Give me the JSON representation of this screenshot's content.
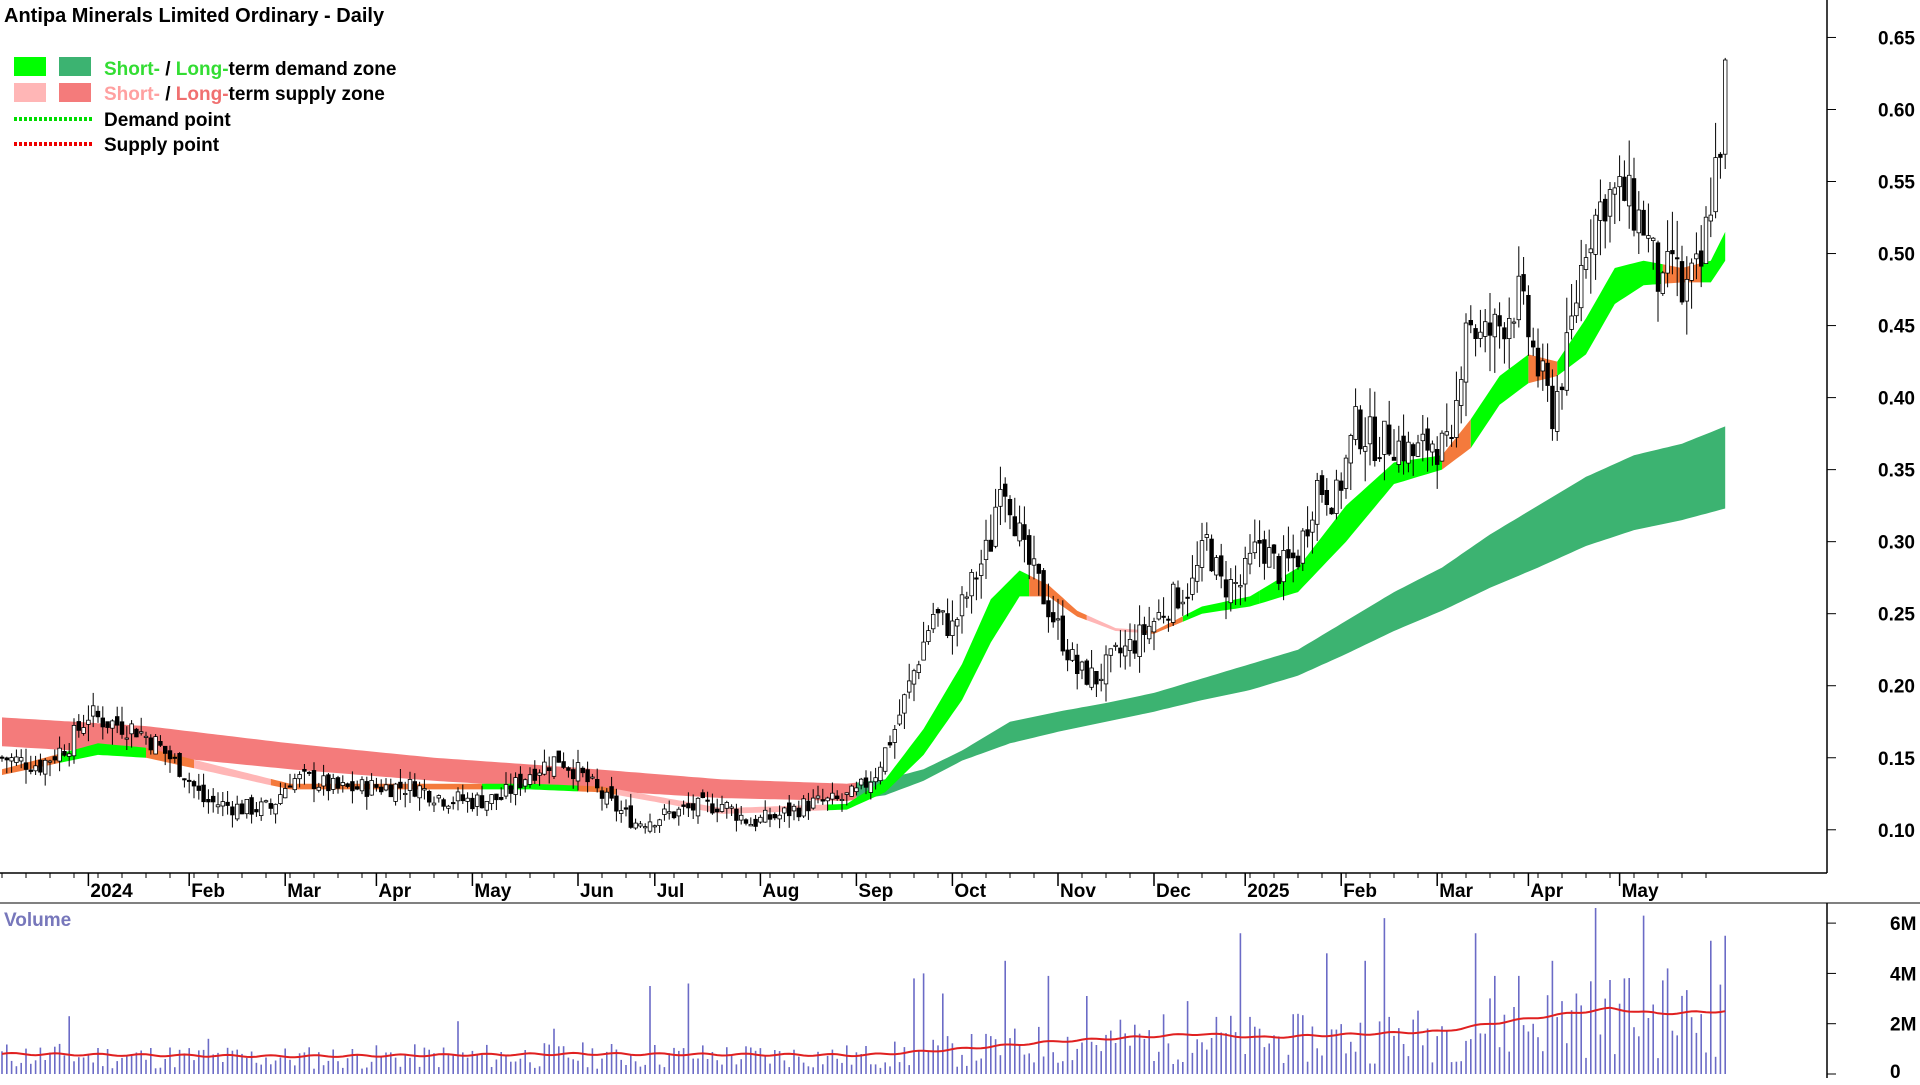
{
  "title": "Antipa Minerals Limited Ordinary - Daily",
  "legend": {
    "demand_zone": {
      "short": "Short-",
      "sep": " / ",
      "long": "Long-",
      "rest": "term demand zone"
    },
    "supply_zone": {
      "short": "Short-",
      "sep": " / ",
      "long": "Long-",
      "rest": "term supply zone"
    },
    "demand_point": "Demand point",
    "supply_point": "Supply point"
  },
  "colors": {
    "short_demand": "#00ff00",
    "long_demand": "#3cb371",
    "short_supply": "#ffb6b6",
    "long_supply": "#f47b7b",
    "crossover": "#f47a3c",
    "demand_point": "#00dd00",
    "supply_point": "#ee0000",
    "volume_bar": "#6b6bc6",
    "volume_avg": "#e02020",
    "legend_green_text": "#33dd33",
    "legend_pink_text": "#ffa0a0",
    "legend_salmon_text": "#f07070"
  },
  "chart_data": [
    {
      "type": "candlestick",
      "title": "Antipa Minerals Limited Ordinary - Daily",
      "y_ticks": [
        "0.65",
        "0.60",
        "0.55",
        "0.50",
        "0.45",
        "0.40",
        "0.35",
        "0.30",
        "0.25",
        "0.20",
        "0.15",
        "0.10"
      ],
      "y_tick_values": [
        0.65,
        0.6,
        0.55,
        0.5,
        0.45,
        0.4,
        0.35,
        0.3,
        0.25,
        0.2,
        0.15,
        0.1
      ],
      "ylim": [
        0.07,
        0.676
      ],
      "x_ticks": [
        "2024",
        "Feb",
        "Mar",
        "Apr",
        "May",
        "Jun",
        "Jul",
        "Aug",
        "Sep",
        "Oct",
        "Nov",
        "Dec",
        "2025",
        "Feb",
        "Mar",
        "Apr",
        "May"
      ],
      "x_tick_indices": [
        18,
        39,
        59,
        78,
        98,
        120,
        136,
        158,
        178,
        198,
        220,
        240,
        259,
        279,
        299,
        318,
        337
      ],
      "close_anchors": [
        [
          0,
          0.15
        ],
        [
          8,
          0.145
        ],
        [
          14,
          0.16
        ],
        [
          18,
          0.18
        ],
        [
          22,
          0.175
        ],
        [
          28,
          0.17
        ],
        [
          32,
          0.16
        ],
        [
          38,
          0.14
        ],
        [
          42,
          0.12
        ],
        [
          50,
          0.115
        ],
        [
          56,
          0.115
        ],
        [
          60,
          0.135
        ],
        [
          64,
          0.135
        ],
        [
          70,
          0.128
        ],
        [
          78,
          0.13
        ],
        [
          86,
          0.13
        ],
        [
          92,
          0.122
        ],
        [
          98,
          0.12
        ],
        [
          104,
          0.122
        ],
        [
          110,
          0.14
        ],
        [
          116,
          0.15
        ],
        [
          120,
          0.14
        ],
        [
          126,
          0.12
        ],
        [
          132,
          0.105
        ],
        [
          138,
          0.11
        ],
        [
          144,
          0.115
        ],
        [
          150,
          0.118
        ],
        [
          156,
          0.105
        ],
        [
          162,
          0.11
        ],
        [
          168,
          0.118
        ],
        [
          174,
          0.12
        ],
        [
          178,
          0.125
        ],
        [
          182,
          0.14
        ],
        [
          186,
          0.17
        ],
        [
          190,
          0.21
        ],
        [
          194,
          0.25
        ],
        [
          198,
          0.24
        ],
        [
          202,
          0.27
        ],
        [
          206,
          0.3
        ],
        [
          208,
          0.35
        ],
        [
          210,
          0.33
        ],
        [
          213,
          0.29
        ],
        [
          216,
          0.27
        ],
        [
          220,
          0.24
        ],
        [
          224,
          0.21
        ],
        [
          228,
          0.205
        ],
        [
          232,
          0.22
        ],
        [
          236,
          0.23
        ],
        [
          240,
          0.245
        ],
        [
          244,
          0.26
        ],
        [
          248,
          0.27
        ],
        [
          251,
          0.3
        ],
        [
          254,
          0.27
        ],
        [
          258,
          0.27
        ],
        [
          262,
          0.3
        ],
        [
          266,
          0.28
        ],
        [
          270,
          0.29
        ],
        [
          274,
          0.34
        ],
        [
          278,
          0.33
        ],
        [
          282,
          0.38
        ],
        [
          286,
          0.37
        ],
        [
          290,
          0.37
        ],
        [
          294,
          0.36
        ],
        [
          298,
          0.37
        ],
        [
          302,
          0.36
        ],
        [
          305,
          0.46
        ],
        [
          308,
          0.44
        ],
        [
          312,
          0.45
        ],
        [
          316,
          0.47
        ],
        [
          320,
          0.42
        ],
        [
          323,
          0.39
        ],
        [
          326,
          0.43
        ],
        [
          330,
          0.51
        ],
        [
          334,
          0.54
        ],
        [
          338,
          0.54
        ],
        [
          342,
          0.52
        ],
        [
          346,
          0.47
        ],
        [
          348,
          0.5
        ],
        [
          350,
          0.47
        ],
        [
          352,
          0.48
        ],
        [
          354,
          0.49
        ],
        [
          356,
          0.54
        ],
        [
          358,
          0.58
        ],
        [
          359,
          0.62
        ]
      ],
      "short_demand_zone_top": [
        [
          0,
          0.142
        ],
        [
          20,
          0.16
        ],
        [
          30,
          0.157
        ],
        [
          60,
          0.132
        ],
        [
          110,
          0.132
        ],
        [
          125,
          0.13
        ],
        [
          150,
          0.115
        ],
        [
          176,
          0.118
        ],
        [
          184,
          0.135
        ],
        [
          192,
          0.17
        ],
        [
          200,
          0.215
        ],
        [
          206,
          0.26
        ],
        [
          212,
          0.28
        ],
        [
          218,
          0.27
        ],
        [
          224,
          0.252
        ],
        [
          232,
          0.24
        ],
        [
          240,
          0.238
        ],
        [
          250,
          0.255
        ],
        [
          260,
          0.262
        ],
        [
          270,
          0.282
        ],
        [
          280,
          0.325
        ],
        [
          290,
          0.355
        ],
        [
          300,
          0.36
        ],
        [
          306,
          0.385
        ],
        [
          312,
          0.415
        ],
        [
          318,
          0.43
        ],
        [
          324,
          0.425
        ],
        [
          330,
          0.455
        ],
        [
          336,
          0.49
        ],
        [
          342,
          0.495
        ],
        [
          350,
          0.49
        ],
        [
          356,
          0.495
        ],
        [
          359,
          0.515
        ]
      ],
      "short_demand_zone_bottom": [
        [
          0,
          0.138
        ],
        [
          20,
          0.152
        ],
        [
          30,
          0.15
        ],
        [
          60,
          0.128
        ],
        [
          110,
          0.128
        ],
        [
          125,
          0.126
        ],
        [
          150,
          0.111
        ],
        [
          176,
          0.114
        ],
        [
          184,
          0.126
        ],
        [
          192,
          0.152
        ],
        [
          200,
          0.19
        ],
        [
          206,
          0.23
        ],
        [
          212,
          0.262
        ],
        [
          218,
          0.262
        ],
        [
          224,
          0.248
        ],
        [
          232,
          0.238
        ],
        [
          240,
          0.236
        ],
        [
          250,
          0.25
        ],
        [
          260,
          0.255
        ],
        [
          270,
          0.265
        ],
        [
          280,
          0.3
        ],
        [
          290,
          0.34
        ],
        [
          300,
          0.35
        ],
        [
          306,
          0.365
        ],
        [
          312,
          0.395
        ],
        [
          318,
          0.41
        ],
        [
          324,
          0.415
        ],
        [
          330,
          0.43
        ],
        [
          336,
          0.465
        ],
        [
          342,
          0.478
        ],
        [
          350,
          0.48
        ],
        [
          356,
          0.48
        ],
        [
          359,
          0.495
        ]
      ],
      "long_zone_top": [
        [
          0,
          0.178
        ],
        [
          30,
          0.172
        ],
        [
          60,
          0.16
        ],
        [
          90,
          0.15
        ],
        [
          120,
          0.143
        ],
        [
          150,
          0.135
        ],
        [
          176,
          0.132
        ],
        [
          184,
          0.135
        ],
        [
          192,
          0.142
        ],
        [
          200,
          0.155
        ],
        [
          210,
          0.175
        ],
        [
          220,
          0.182
        ],
        [
          230,
          0.188
        ],
        [
          240,
          0.195
        ],
        [
          250,
          0.205
        ],
        [
          260,
          0.215
        ],
        [
          270,
          0.225
        ],
        [
          280,
          0.245
        ],
        [
          290,
          0.265
        ],
        [
          300,
          0.282
        ],
        [
          310,
          0.305
        ],
        [
          320,
          0.325
        ],
        [
          330,
          0.345
        ],
        [
          340,
          0.36
        ],
        [
          350,
          0.368
        ],
        [
          359,
          0.38
        ]
      ],
      "long_zone_bottom": [
        [
          0,
          0.158
        ],
        [
          30,
          0.152
        ],
        [
          60,
          0.142
        ],
        [
          90,
          0.134
        ],
        [
          120,
          0.128
        ],
        [
          150,
          0.122
        ],
        [
          176,
          0.12
        ],
        [
          184,
          0.124
        ],
        [
          192,
          0.134
        ],
        [
          200,
          0.148
        ],
        [
          210,
          0.16
        ],
        [
          220,
          0.168
        ],
        [
          230,
          0.175
        ],
        [
          240,
          0.182
        ],
        [
          250,
          0.19
        ],
        [
          260,
          0.197
        ],
        [
          270,
          0.207
        ],
        [
          280,
          0.222
        ],
        [
          290,
          0.238
        ],
        [
          300,
          0.252
        ],
        [
          310,
          0.268
        ],
        [
          320,
          0.282
        ],
        [
          330,
          0.297
        ],
        [
          340,
          0.308
        ],
        [
          350,
          0.315
        ],
        [
          359,
          0.323
        ]
      ],
      "long_zone_demand_from_index": 178
    },
    {
      "type": "bar",
      "title": "Volume",
      "y_ticks": [
        "6M",
        "4M",
        "2M",
        "0"
      ],
      "y_tick_values": [
        6000000,
        4000000,
        2000000,
        0
      ],
      "ylim": [
        0,
        6800000
      ],
      "avg_anchors": [
        [
          0,
          800000
        ],
        [
          60,
          700000
        ],
        [
          120,
          800000
        ],
        [
          180,
          750000
        ],
        [
          200,
          1000000
        ],
        [
          220,
          1300000
        ],
        [
          250,
          1600000
        ],
        [
          262,
          1450000
        ],
        [
          300,
          1700000
        ],
        [
          310,
          2000000
        ],
        [
          322,
          2300000
        ],
        [
          335,
          2600000
        ],
        [
          345,
          2400000
        ],
        [
          359,
          2500000
        ]
      ],
      "spikes": [
        [
          14,
          2300000
        ],
        [
          43,
          1400000
        ],
        [
          95,
          2100000
        ],
        [
          115,
          1800000
        ],
        [
          135,
          3500000
        ],
        [
          143,
          3600000
        ],
        [
          190,
          3800000
        ],
        [
          192,
          4000000
        ],
        [
          196,
          3200000
        ],
        [
          209,
          4500000
        ],
        [
          218,
          3900000
        ],
        [
          226,
          3100000
        ],
        [
          247,
          2900000
        ],
        [
          258,
          5600000
        ],
        [
          276,
          4800000
        ],
        [
          284,
          4500000
        ],
        [
          288,
          6200000
        ],
        [
          300,
          1900000
        ],
        [
          307,
          5600000
        ],
        [
          311,
          3900000
        ],
        [
          316,
          3900000
        ],
        [
          323,
          4500000
        ],
        [
          328,
          3200000
        ],
        [
          332,
          6600000
        ],
        [
          338,
          3800000
        ],
        [
          342,
          6300000
        ],
        [
          347,
          4200000
        ],
        [
          356,
          5300000
        ],
        [
          359,
          5500000
        ]
      ]
    }
  ]
}
